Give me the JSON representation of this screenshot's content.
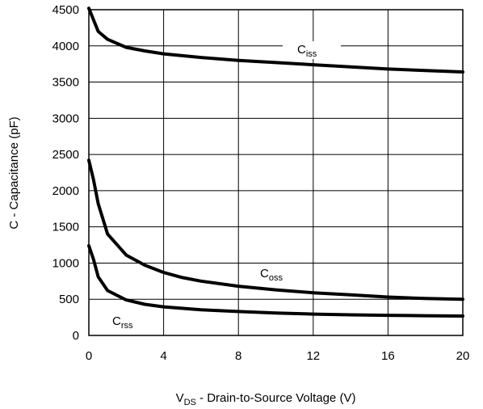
{
  "chart_data": {
    "type": "line",
    "xlabel": "V_DS - Drain-to-Source Voltage (V)",
    "xlabel_parts": {
      "main": "V",
      "sub": "DS",
      "rest": " - Drain-to-Source Voltage (V)"
    },
    "ylabel": "C - Capacitance (pF)",
    "xlim": [
      0,
      20
    ],
    "ylim": [
      0,
      4500
    ],
    "xticks": [
      0,
      4,
      8,
      12,
      16,
      20
    ],
    "yticks": [
      0,
      500,
      1000,
      1500,
      2000,
      2500,
      3000,
      3500,
      4000,
      4500
    ],
    "xtick_labels": [
      "0",
      "4",
      "8",
      "12",
      "16",
      "20"
    ],
    "ytick_labels": [
      "0",
      "500",
      "1000",
      "1500",
      "2000",
      "2500",
      "3000",
      "3500",
      "4000",
      "4500"
    ],
    "grid": true,
    "series": [
      {
        "name": "Ciss",
        "label_main": "C",
        "label_sub": "iss",
        "x": [
          0,
          0.5,
          1,
          2,
          3,
          4,
          6,
          8,
          10,
          12,
          14,
          16,
          18,
          20
        ],
        "y": [
          4520,
          4200,
          4090,
          3980,
          3930,
          3890,
          3840,
          3800,
          3770,
          3740,
          3710,
          3680,
          3660,
          3640
        ]
      },
      {
        "name": "Coss",
        "label_main": "C",
        "label_sub": "oss",
        "x": [
          0,
          0.25,
          0.5,
          1,
          2,
          3,
          4,
          5,
          6,
          8,
          10,
          12,
          14,
          16,
          18,
          20
        ],
        "y": [
          2420,
          2150,
          1820,
          1400,
          1110,
          970,
          870,
          800,
          750,
          680,
          630,
          590,
          560,
          530,
          510,
          500
        ]
      },
      {
        "name": "Crss",
        "label_main": "C",
        "label_sub": "rss",
        "x": [
          0,
          0.25,
          0.5,
          1,
          2,
          3,
          4,
          6,
          8,
          10,
          12,
          14,
          16,
          18,
          20
        ],
        "y": [
          1240,
          1050,
          810,
          620,
          490,
          430,
          395,
          355,
          330,
          310,
          295,
          285,
          278,
          272,
          268
        ]
      }
    ]
  }
}
